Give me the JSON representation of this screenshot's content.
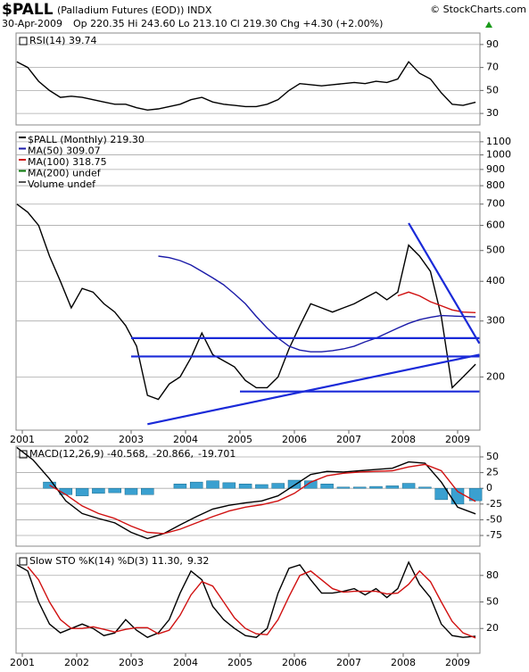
{
  "header": {
    "symbol": "$PALL",
    "description": "(Palladium Futures (EOD)) INDX",
    "copyright": "© StockCharts.com",
    "date": "30-Apr-2009",
    "quote": "Op 220.35 Hi 243.60 Lo 213.10 Cl 219.30 Chg +4.30 (+2.00%)"
  },
  "chart_data": [
    {
      "type": "line",
      "legend": [
        {
          "text": "RSI(14) 39.74",
          "color": "#000000"
        }
      ],
      "legend_orientation": "horizontal",
      "xlim": [
        2000.885,
        2009.41
      ],
      "ylim": [
        20,
        100
      ],
      "yticks": [
        30,
        50,
        70,
        90
      ],
      "grid": true,
      "series": [
        {
          "color": "#000000",
          "x": [
            2000.9,
            2001.1,
            2001.3,
            2001.5,
            2001.7,
            2001.9,
            2002.1,
            2002.3,
            2002.5,
            2002.7,
            2002.9,
            2003.1,
            2003.3,
            2003.5,
            2003.7,
            2003.9,
            2004.1,
            2004.3,
            2004.5,
            2004.7,
            2004.9,
            2005.1,
            2005.3,
            2005.5,
            2005.7,
            2005.9,
            2006.1,
            2006.3,
            2006.5,
            2006.7,
            2006.9,
            2007.1,
            2007.3,
            2007.5,
            2007.7,
            2007.9,
            2008.1,
            2008.3,
            2008.5,
            2008.7,
            2008.9,
            2009.1,
            2009.33
          ],
          "values": [
            75,
            70,
            58,
            50,
            44,
            45,
            44,
            42,
            40,
            38,
            38,
            35,
            33,
            34,
            36,
            38,
            42,
            44,
            40,
            38,
            37,
            36,
            36,
            38,
            42,
            50,
            56,
            55,
            54,
            55,
            56,
            57,
            56,
            58,
            57,
            60,
            75,
            65,
            60,
            48,
            38,
            37,
            39.74
          ]
        }
      ]
    },
    {
      "type": "line",
      "log_scale": true,
      "legend_orientation": "vertical",
      "legend": [
        {
          "text": "$PALL (Monthly) 219.30",
          "color": "#000000"
        },
        {
          "text": "MA(50) 309.07",
          "color": "#1a1aa8"
        },
        {
          "text": "MA(100) 318.75",
          "color": "#d01010"
        },
        {
          "text": "MA(200) undef",
          "color": "#0a7a0a"
        },
        {
          "text": "Volume undef",
          "color": "#555555"
        }
      ],
      "xlim": [
        2000.885,
        2009.41
      ],
      "xticks": [
        2001,
        2002,
        2003,
        2004,
        2005,
        2006,
        2007,
        2008,
        2009
      ],
      "ylim": [
        136,
        1180
      ],
      "yticks": [
        200,
        300,
        400,
        500,
        600,
        700,
        800,
        900,
        1000,
        1100
      ],
      "grid": true,
      "series": [
        {
          "color": "#000000",
          "x": [
            2000.9,
            2001.1,
            2001.3,
            2001.5,
            2001.7,
            2001.9,
            2002.1,
            2002.3,
            2002.5,
            2002.7,
            2002.9,
            2003.1,
            2003.3,
            2003.5,
            2003.7,
            2003.9,
            2004.1,
            2004.3,
            2004.5,
            2004.7,
            2004.9,
            2005.1,
            2005.3,
            2005.5,
            2005.7,
            2005.9,
            2006.1,
            2006.3,
            2006.5,
            2006.7,
            2006.9,
            2007.1,
            2007.3,
            2007.5,
            2007.7,
            2007.9,
            2008.1,
            2008.3,
            2008.5,
            2008.7,
            2008.9,
            2009.1,
            2009.33
          ],
          "values": [
            700,
            660,
            600,
            480,
            400,
            330,
            380,
            370,
            340,
            320,
            290,
            250,
            175,
            170,
            190,
            200,
            230,
            275,
            235,
            225,
            215,
            195,
            185,
            185,
            200,
            245,
            290,
            340,
            330,
            320,
            330,
            340,
            355,
            370,
            350,
            370,
            520,
            480,
            430,
            310,
            185,
            200,
            219.3
          ]
        },
        {
          "color": "#1a1aa8",
          "x": [
            2000.9,
            2001.1,
            2001.3,
            2001.5,
            2001.7,
            2001.9,
            2002.1,
            2002.3,
            2002.5,
            2002.7,
            2002.9,
            2003.1,
            2003.3,
            2003.5,
            2003.7,
            2003.9,
            2004.1,
            2004.3,
            2004.5,
            2004.7,
            2004.9,
            2005.1,
            2005.3,
            2005.5,
            2005.7,
            2005.9,
            2006.1,
            2006.3,
            2006.5,
            2006.7,
            2006.9,
            2007.1,
            2007.3,
            2007.5,
            2007.7,
            2007.9,
            2008.1,
            2008.3,
            2008.5,
            2008.7,
            2008.9,
            2009.1,
            2009.33
          ],
          "values": [
            null,
            null,
            null,
            null,
            null,
            null,
            null,
            null,
            null,
            null,
            null,
            null,
            null,
            480,
            475,
            465,
            450,
            430,
            410,
            390,
            365,
            340,
            310,
            285,
            265,
            250,
            243,
            240,
            240,
            242,
            245,
            250,
            258,
            265,
            275,
            285,
            295,
            303,
            308,
            312,
            311,
            310,
            309.07
          ]
        },
        {
          "color": "#d01010",
          "x": [
            2007.9,
            2008.1,
            2008.3,
            2008.5,
            2008.7,
            2008.9,
            2009.1,
            2009.33
          ],
          "values": [
            360,
            370,
            360,
            345,
            335,
            325,
            320,
            318.75
          ]
        }
      ],
      "trendlines": [
        {
          "color": "#1a2ad8",
          "x": [
            2003.0,
            2009.4
          ],
          "values": [
            265,
            265
          ]
        },
        {
          "color": "#1a2ad8",
          "x": [
            2003.0,
            2009.4
          ],
          "values": [
            232,
            232
          ]
        },
        {
          "color": "#1a2ad8",
          "x": [
            2005.0,
            2009.4
          ],
          "values": [
            180,
            180
          ]
        },
        {
          "color": "#1a2ad8",
          "x": [
            2003.3,
            2009.4
          ],
          "values": [
            142,
            235
          ]
        },
        {
          "color": "#1a2ad8",
          "x": [
            2008.1,
            2009.4
          ],
          "values": [
            610,
            255
          ]
        }
      ]
    },
    {
      "type": "line",
      "legend_orientation": "horizontal",
      "legend": [
        {
          "text": "MACD(12,26,9) -40.568,",
          "color": "#000000"
        },
        {
          "text": "-20.866,",
          "color": "#d01010"
        },
        {
          "text": "-19.701",
          "color": "#1a8aa8"
        }
      ],
      "xlim": [
        2000.885,
        2009.41
      ],
      "ylim": [
        -92,
        67
      ],
      "yticks": [
        50,
        25,
        0,
        -25,
        -50,
        -75
      ],
      "grid": true,
      "series": [
        {
          "type": "bar",
          "color": "#3aa0d0",
          "x": [
            2000.9,
            2001.2,
            2001.5,
            2001.8,
            2002.1,
            2002.4,
            2002.7,
            2003.0,
            2003.3,
            2003.6,
            2003.9,
            2004.2,
            2004.5,
            2004.8,
            2005.1,
            2005.4,
            2005.7,
            2006.0,
            2006.3,
            2006.6,
            2006.9,
            2007.2,
            2007.5,
            2007.8,
            2008.1,
            2008.4,
            2008.7,
            2009.0,
            2009.33
          ],
          "values": [
            null,
            null,
            10,
            -10,
            -12,
            -8,
            -7,
            -10,
            -10,
            0,
            7,
            10,
            12,
            9,
            7,
            6,
            8,
            13,
            12,
            7,
            2,
            2,
            3,
            4,
            8,
            2,
            -18,
            -25,
            -19.701
          ]
        },
        {
          "color": "#000000",
          "x": [
            2000.9,
            2001.2,
            2001.5,
            2001.8,
            2002.1,
            2002.4,
            2002.7,
            2003.0,
            2003.3,
            2003.6,
            2003.9,
            2004.2,
            2004.5,
            2004.8,
            2005.1,
            2005.4,
            2005.7,
            2006.0,
            2006.3,
            2006.6,
            2006.9,
            2007.2,
            2007.5,
            2007.8,
            2008.1,
            2008.4,
            2008.7,
            2009.0,
            2009.33
          ],
          "values": [
            65,
            45,
            15,
            -20,
            -40,
            -48,
            -55,
            -70,
            -80,
            -72,
            -58,
            -45,
            -33,
            -27,
            -23,
            -20,
            -12,
            5,
            22,
            27,
            26,
            28,
            30,
            32,
            42,
            40,
            10,
            -30,
            -40.568
          ]
        },
        {
          "color": "#d01010",
          "x": [
            2000.9,
            2001.2,
            2001.5,
            2001.8,
            2002.1,
            2002.4,
            2002.7,
            2003.0,
            2003.3,
            2003.6,
            2003.9,
            2004.2,
            2004.5,
            2004.8,
            2005.1,
            2005.4,
            2005.7,
            2006.0,
            2006.3,
            2006.6,
            2006.9,
            2007.2,
            2007.5,
            2007.8,
            2008.1,
            2008.4,
            2008.7,
            2009.0,
            2009.33
          ],
          "values": [
            null,
            null,
            5,
            -10,
            -28,
            -40,
            -48,
            -60,
            -70,
            -72,
            -65,
            -55,
            -45,
            -36,
            -30,
            -26,
            -20,
            -8,
            10,
            20,
            24,
            26,
            27,
            28,
            34,
            38,
            28,
            -5,
            -20.866
          ]
        }
      ]
    },
    {
      "type": "line",
      "legend_orientation": "horizontal",
      "legend": [
        {
          "text": "Slow STO %K(14) %D(3) 11.30,",
          "color": "#000000"
        },
        {
          "text": "9.32",
          "color": "#d01010"
        }
      ],
      "xlim": [
        2000.885,
        2009.41
      ],
      "xticks": [
        2001,
        2002,
        2003,
        2004,
        2005,
        2006,
        2007,
        2008,
        2009
      ],
      "ylim": [
        -8,
        105
      ],
      "yticks": [
        80,
        50,
        20
      ],
      "grid": true,
      "series": [
        {
          "color": "#000000",
          "x": [
            2000.9,
            2001.1,
            2001.3,
            2001.5,
            2001.7,
            2001.9,
            2002.1,
            2002.3,
            2002.5,
            2002.7,
            2002.9,
            2003.1,
            2003.3,
            2003.5,
            2003.7,
            2003.9,
            2004.1,
            2004.3,
            2004.5,
            2004.7,
            2004.9,
            2005.1,
            2005.3,
            2005.5,
            2005.7,
            2005.9,
            2006.1,
            2006.3,
            2006.5,
            2006.7,
            2006.9,
            2007.1,
            2007.3,
            2007.5,
            2007.7,
            2007.9,
            2008.1,
            2008.3,
            2008.5,
            2008.7,
            2008.9,
            2009.1,
            2009.33
          ],
          "values": [
            92,
            85,
            50,
            25,
            15,
            20,
            25,
            20,
            12,
            15,
            30,
            18,
            10,
            15,
            30,
            60,
            85,
            75,
            45,
            30,
            20,
            12,
            10,
            20,
            60,
            88,
            92,
            75,
            60,
            60,
            62,
            65,
            58,
            65,
            55,
            65,
            95,
            70,
            55,
            25,
            12,
            10,
            11.3
          ]
        },
        {
          "color": "#d01010",
          "x": [
            2000.9,
            2001.1,
            2001.3,
            2001.5,
            2001.7,
            2001.9,
            2002.1,
            2002.3,
            2002.5,
            2002.7,
            2002.9,
            2003.1,
            2003.3,
            2003.5,
            2003.7,
            2003.9,
            2004.1,
            2004.3,
            2004.5,
            2004.7,
            2004.9,
            2005.1,
            2005.3,
            2005.5,
            2005.7,
            2005.9,
            2006.1,
            2006.3,
            2006.5,
            2006.7,
            2006.9,
            2007.1,
            2007.3,
            2007.5,
            2007.7,
            2007.9,
            2008.1,
            2008.3,
            2008.5,
            2008.7,
            2008.9,
            2009.1,
            2009.33
          ],
          "values": [
            null,
            90,
            75,
            50,
            30,
            20,
            20,
            22,
            19,
            16,
            19,
            21,
            21,
            14,
            18,
            35,
            58,
            73,
            68,
            50,
            32,
            20,
            14,
            13,
            30,
            56,
            80,
            85,
            75,
            65,
            61,
            62,
            62,
            62,
            59,
            60,
            70,
            85,
            73,
            50,
            28,
            15,
            9.32
          ]
        }
      ]
    }
  ]
}
